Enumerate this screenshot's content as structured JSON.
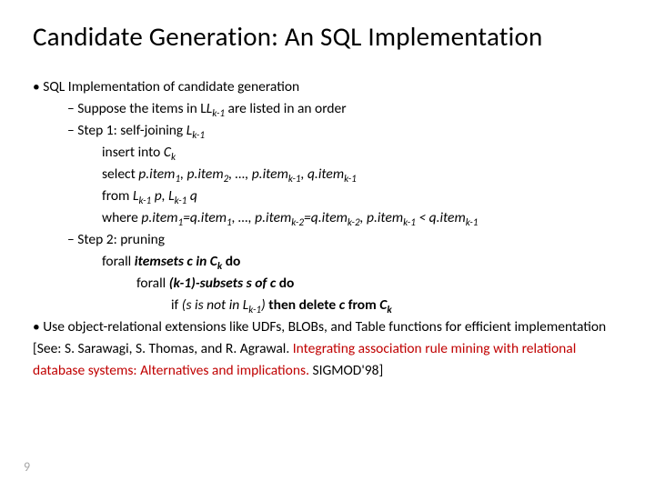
{
  "title": "Candidate Generation: An SQL Implementation",
  "pageNumber": "9",
  "bullet1": "SQL Implementation of candidate generation",
  "sub1": "Suppose the items in L",
  "sub1b": " are listed in an order",
  "sub2a": "Step 1: self-joining ",
  "insert_pre": "insert into ",
  "insert_c": "C",
  "select_pre": "select ",
  "select_body": "p.item",
  "comma": ", ",
  "dots": ", …, ",
  "p_item": "p.item",
  "q_item": "q.item",
  "from_pre": "from ",
  "lbl_L": "L",
  "lbl_p": " p, ",
  "lbl_q": " q",
  "where_pre": "where ",
  "eq": "=",
  "lt": " < ",
  "sub3": "Step 2: pruning",
  "forall1a": "forall ",
  "forall1b": "itemsets c in C",
  "forall1c": " do",
  "forall2a": "forall ",
  "forall2b": "(k-1)-subsets s of c",
  "forall2c": " do",
  "if_a": "if ",
  "if_b": "(s is not in L",
  "if_c": ") ",
  "if_d": "then delete ",
  "if_e": "c",
  "if_f": " from ",
  "if_g": "C",
  "bullet2a": "Use object-relational extensions like UDFs, BLOBs, and Table functions for efficient implementation [See: S. Sarawagi, S. Thomas, and R. Agrawal. ",
  "bullet2b": "Integrating association rule mining with relational database systems: Alternatives and implications. ",
  "bullet2c": "SIGMOD'98]",
  "k": "k",
  "k1": "k-1",
  "k2": "k-2",
  "n1": "1",
  "n2": "2",
  "colors": {
    "text": "#000000",
    "red": "#c00000",
    "page": "#a6a6a6",
    "bg": "#ffffff"
  }
}
